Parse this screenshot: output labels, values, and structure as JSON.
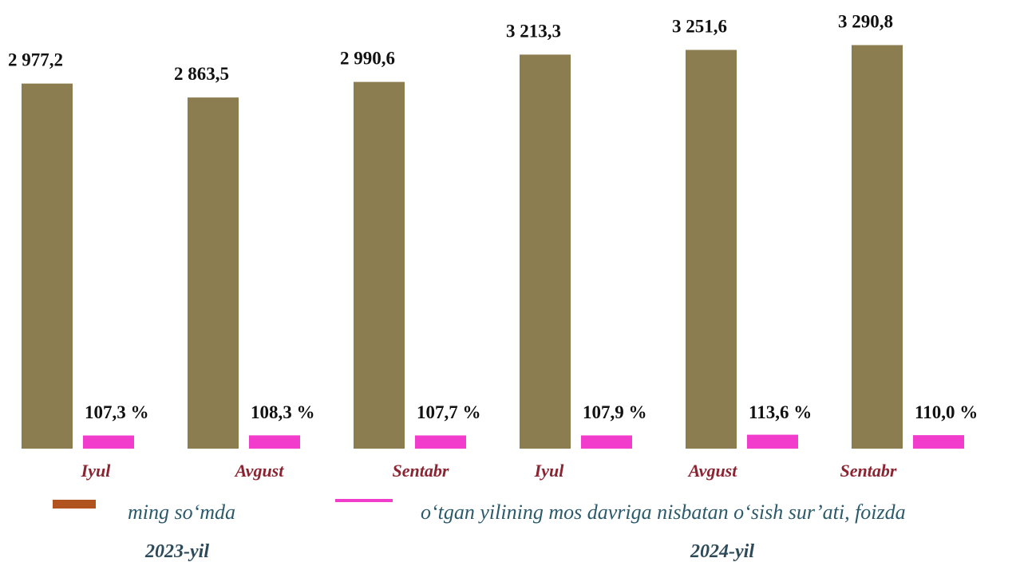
{
  "chart_data": {
    "type": "bar",
    "categories": [
      "Iyul",
      "Avgust",
      "Sentabr",
      "Iyul",
      "Avgust",
      "Sentabr"
    ],
    "group_labels": [
      "2023-yil",
      "2024-yil"
    ],
    "ylim": [
      0,
      3600
    ],
    "series": [
      {
        "name": "ming so‘mda",
        "color": "#8b7d4f",
        "legend_color": "#b0531e",
        "values": [
          2977.2,
          2863.5,
          2990.6,
          3213.3,
          3251.6,
          3290.8
        ],
        "value_labels": [
          "2 977,2",
          "2 863,5",
          "2 990,6",
          "3 213,3",
          "3 251,6",
          "3 290,8"
        ]
      },
      {
        "name": "o‘tgan yilining mos davriga nisbatan o‘sish sur’ati, foizda",
        "color": "#f23ccc",
        "values": [
          107.3,
          108.3,
          107.7,
          107.9,
          113.6,
          110.0
        ],
        "value_labels": [
          "107,3 %",
          "108,3 %",
          "107,7 %",
          "107,9 %",
          "113,6 %",
          "110,0 %"
        ]
      }
    ]
  }
}
